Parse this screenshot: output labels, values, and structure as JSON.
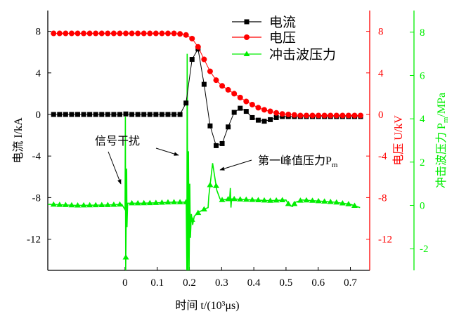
{
  "chart_data": {
    "type": "line",
    "xlabel": "时间 t/(10³μs)",
    "xlim": [
      -0.24,
      0.76
    ],
    "xticks": [
      "0",
      "0.1",
      "0.2",
      "0.3",
      "0.4",
      "0.5",
      "0.6",
      "0.7"
    ],
    "xtick_values": [
      0,
      0.1,
      0.2,
      0.3,
      0.4,
      0.5,
      0.6,
      0.7
    ],
    "axes": {
      "left": {
        "label": "电流 I/kA",
        "ylim": [
          -15,
          10
        ],
        "ticks": [
          "8",
          "4",
          "0",
          "-4",
          "-8",
          "-12"
        ],
        "tick_values": [
          8,
          4,
          0,
          -4,
          -8,
          -12
        ],
        "color": "#000000"
      },
      "right1": {
        "label": "电压 U/kV",
        "ylim": [
          -15,
          10
        ],
        "ticks": [
          "8",
          "4",
          "0",
          "-4",
          "-8",
          "-12"
        ],
        "tick_values": [
          8,
          4,
          0,
          -4,
          -8,
          -12
        ],
        "color": "#ff0000"
      },
      "right2": {
        "label_main": "冲击波压力 P",
        "label_sub": "m",
        "label_tail": "/MPa",
        "ylim": [
          -3,
          9
        ],
        "ticks": [
          "8",
          "6",
          "4",
          "2",
          "0",
          "-2"
        ],
        "tick_values": [
          8,
          6,
          4,
          2,
          0,
          -2
        ],
        "color": "#00ee00"
      }
    },
    "x_grid": {
      "start": -0.222,
      "step": 0.0187,
      "count": 52
    },
    "series": [
      {
        "name": "电流",
        "axis": "left",
        "color": "#000000",
        "marker": "square",
        "values": [
          0,
          0,
          0,
          0,
          0,
          0,
          0,
          0,
          0,
          0,
          0,
          0,
          0.05,
          0,
          0,
          0,
          0,
          0,
          0,
          0,
          0,
          0,
          1.1,
          5.3,
          6.3,
          2.9,
          -1.1,
          -3.0,
          -2.8,
          -1.2,
          0.2,
          0.6,
          0.3,
          -0.3,
          -0.55,
          -0.65,
          -0.5,
          -0.3,
          -0.2,
          -0.2,
          -0.2,
          -0.2,
          -0.2,
          -0.2,
          -0.2,
          -0.2,
          -0.2,
          -0.2,
          -0.2,
          -0.2,
          -0.2,
          -0.2
        ]
      },
      {
        "name": "电压",
        "axis": "right1",
        "color": "#ff0000",
        "marker": "circle",
        "values": [
          7.8,
          7.8,
          7.8,
          7.8,
          7.8,
          7.8,
          7.8,
          7.8,
          7.8,
          7.8,
          7.8,
          7.8,
          7.8,
          7.8,
          7.8,
          7.8,
          7.8,
          7.8,
          7.8,
          7.8,
          7.8,
          7.75,
          7.65,
          7.3,
          6.5,
          5.3,
          4.15,
          3.3,
          2.75,
          2.37,
          2.0,
          1.63,
          1.25,
          0.95,
          0.65,
          0.45,
          0.3,
          0.15,
          0.05,
          0,
          -0.05,
          -0.1,
          -0.1,
          -0.1,
          -0.1,
          -0.1,
          -0.1,
          -0.1,
          -0.1,
          -0.1,
          -0.1,
          -0.1
        ]
      },
      {
        "name": "冲击波压力",
        "axis": "right2",
        "color": "#00ee00",
        "marker": "triangle",
        "points": [
          [
            -0.24,
            0.05
          ],
          [
            -0.15,
            0.0
          ],
          [
            -0.05,
            0.02
          ],
          [
            -0.01,
            0.05
          ],
          [
            0.0,
            -0.2
          ],
          [
            0.001,
            4.1
          ],
          [
            0.002,
            -3
          ],
          [
            0.004,
            0.0
          ],
          [
            0.005,
            1.7
          ],
          [
            0.006,
            -1
          ],
          [
            0.008,
            0.1
          ],
          [
            0.05,
            0.1
          ],
          [
            0.1,
            0.12
          ],
          [
            0.15,
            0.15
          ],
          [
            0.19,
            0.15
          ],
          [
            0.192,
            -3
          ],
          [
            0.193,
            7.0
          ],
          [
            0.195,
            -3
          ],
          [
            0.197,
            2.5
          ],
          [
            0.199,
            -3
          ],
          [
            0.201,
            1.0
          ],
          [
            0.203,
            -1.5
          ],
          [
            0.206,
            -0.4
          ],
          [
            0.21,
            -0.9
          ],
          [
            0.215,
            -0.5
          ],
          [
            0.23,
            -0.3
          ],
          [
            0.25,
            -0.15
          ],
          [
            0.258,
            -0.1
          ],
          [
            0.26,
            0.4
          ],
          [
            0.272,
            1.95
          ],
          [
            0.285,
            0.7
          ],
          [
            0.295,
            0.3
          ],
          [
            0.3,
            0.25
          ],
          [
            0.325,
            0.3
          ],
          [
            0.327,
            0.8
          ],
          [
            0.329,
            -0.1
          ],
          [
            0.331,
            0.3
          ],
          [
            0.4,
            0.25
          ],
          [
            0.45,
            0.22
          ],
          [
            0.5,
            0.25
          ],
          [
            0.51,
            0.0
          ],
          [
            0.52,
            -0.05
          ],
          [
            0.53,
            0.15
          ],
          [
            0.55,
            0.25
          ],
          [
            0.6,
            0.2
          ],
          [
            0.65,
            0.15
          ],
          [
            0.7,
            0.05
          ],
          [
            0.73,
            -0.1
          ]
        ]
      }
    ],
    "legend": {
      "placement": "top-right",
      "entries": [
        "电流",
        "电压",
        "冲击波压力"
      ]
    },
    "annotations": {
      "interference": "信号干扰",
      "peak_main": "第一峰值压力P",
      "peak_sub": "m"
    }
  }
}
